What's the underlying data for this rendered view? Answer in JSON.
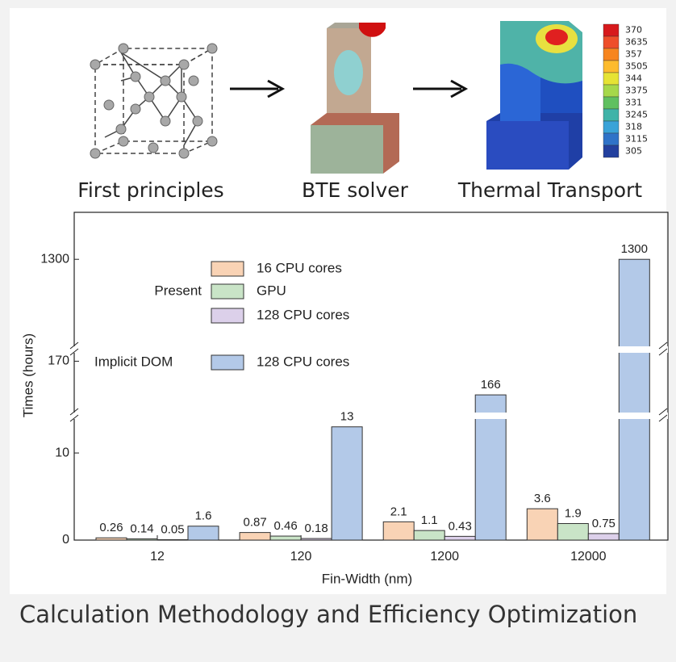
{
  "diagram": {
    "steps": [
      "First principles",
      "BTE solver",
      "Thermal Transport"
    ],
    "colorbar_labels": [
      "370",
      "3635",
      "357",
      "3505",
      "344",
      "3375",
      "331",
      "3245",
      "318",
      "3115",
      "305"
    ]
  },
  "chart_data": {
    "type": "bar",
    "y_label": "Times (hours)",
    "x_label": "Fin-Width (nm)",
    "categories": [
      "12",
      "120",
      "1200",
      "12000"
    ],
    "legend_groups": [
      "Present",
      "Implicit DOM"
    ],
    "series": [
      {
        "name": "16 CPU cores",
        "color": "#f9d3b5",
        "values": [
          0.26,
          0.87,
          2.1,
          3.6
        ]
      },
      {
        "name": "GPU",
        "color": "#c9e4c7",
        "values": [
          0.14,
          0.46,
          1.1,
          1.9
        ]
      },
      {
        "name": "128 CPU cores",
        "color": "#dcd0ea",
        "values": [
          0.05,
          0.18,
          0.43,
          0.75
        ]
      },
      {
        "name": "128 CPU cores",
        "color": "#b3c9e8",
        "values": [
          1.6,
          13,
          166,
          1300
        ]
      }
    ],
    "y_segments": [
      {
        "ylim": [
          0,
          13.9
        ],
        "yticks": [
          0,
          10
        ]
      },
      {
        "ylim": [
          163.9,
          171
        ],
        "yticks": [
          170
        ]
      },
      {
        "ylim": [
          1290,
          1305.4
        ],
        "yticks": [
          1300
        ]
      }
    ]
  },
  "caption": "Calculation Methodology and Efficiency Optimization"
}
